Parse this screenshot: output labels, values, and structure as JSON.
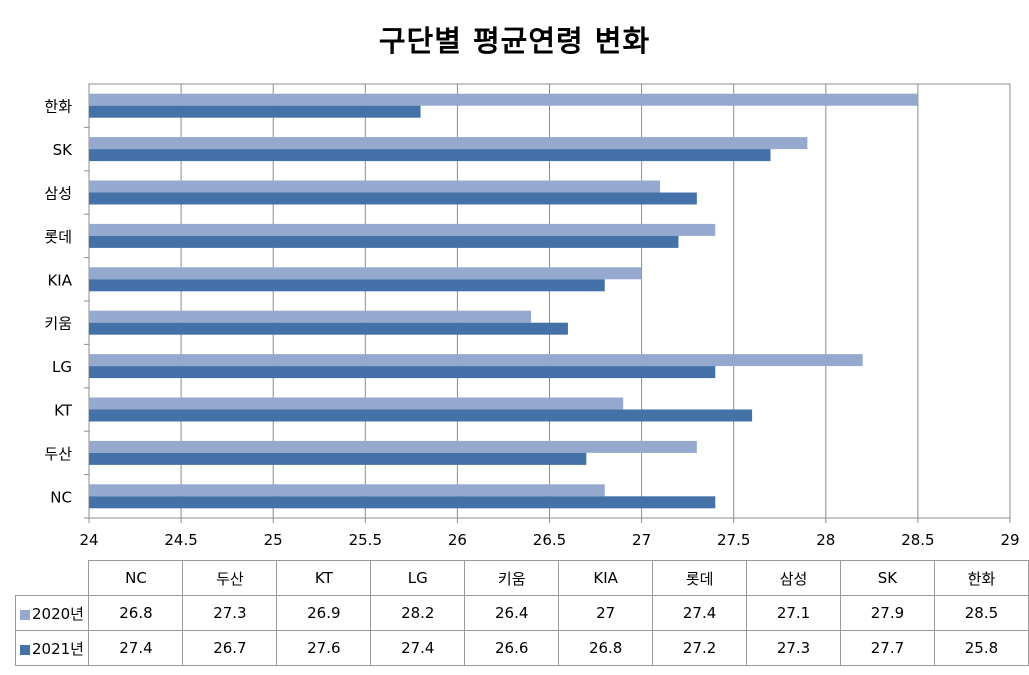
{
  "chart_data": {
    "type": "bar",
    "orientation": "horizontal",
    "title": "구단별 평균연령 변화",
    "xlabel": "",
    "ylabel": "",
    "xlim": [
      24,
      29
    ],
    "x_ticks": [
      "24",
      "24.5",
      "25",
      "25.5",
      "26",
      "26.5",
      "27",
      "27.5",
      "28",
      "28.5",
      "29"
    ],
    "grid": true,
    "legend": "data-table",
    "categories": [
      "NC",
      "두산",
      "KT",
      "LG",
      "키움",
      "KIA",
      "롯데",
      "삼성",
      "SK",
      "한화"
    ],
    "series": [
      {
        "name": "2020년",
        "color": "#95a9cf",
        "values": [
          26.8,
          27.3,
          26.9,
          28.2,
          26.4,
          27,
          27.4,
          27.1,
          27.9,
          28.5
        ]
      },
      {
        "name": "2021년",
        "color": "#4472a8",
        "values": [
          27.4,
          26.7,
          27.6,
          27.4,
          26.6,
          26.8,
          27.2,
          27.3,
          27.7,
          25.8
        ]
      }
    ],
    "table": {
      "rows": [
        [
          "26.8",
          "27.3",
          "26.9",
          "28.2",
          "26.4",
          "27",
          "27.4",
          "27.1",
          "27.9",
          "28.5"
        ],
        [
          "27.4",
          "26.7",
          "27.6",
          "27.4",
          "26.6",
          "26.8",
          "27.2",
          "27.3",
          "27.7",
          "25.8"
        ]
      ]
    }
  }
}
